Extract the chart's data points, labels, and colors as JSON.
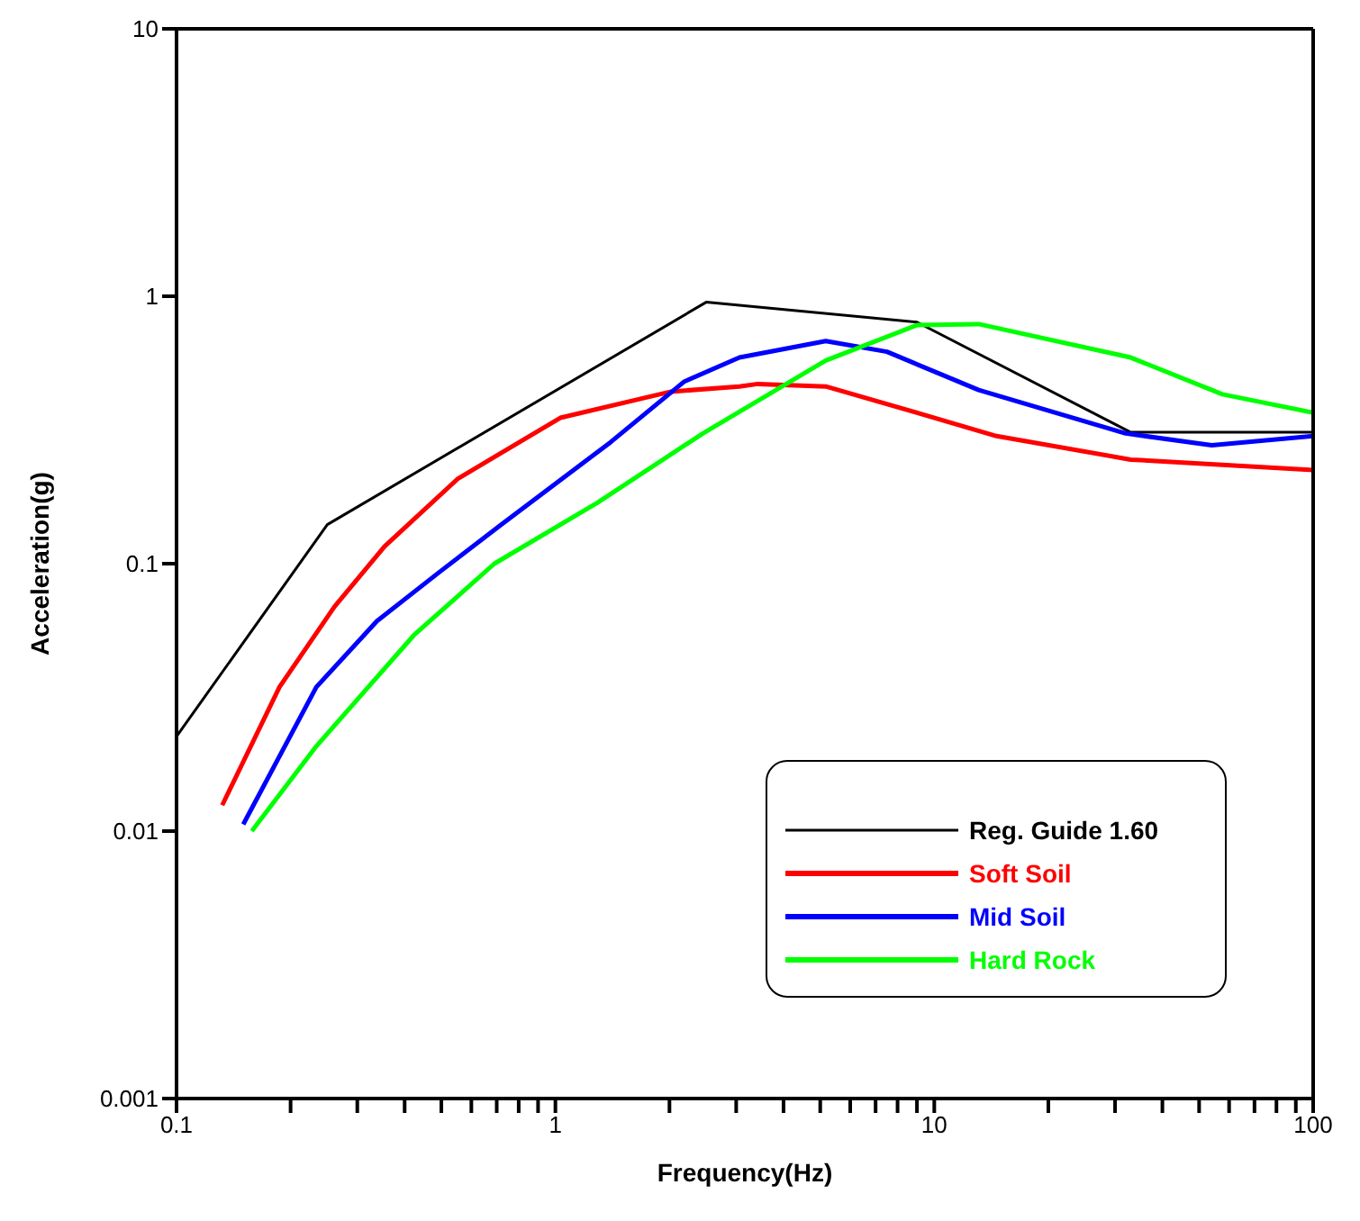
{
  "chart_data": {
    "type": "line",
    "xlabel": "Frequency(Hz)",
    "ylabel": "Acceleration(g)",
    "log": "xy",
    "grid": false,
    "legend": "bottom right",
    "marker": "none",
    "line_style": "solid",
    "xlim": [
      0.1,
      100
    ],
    "ylim": [
      0.001,
      10
    ],
    "xticks": [
      0.1,
      {
        "value": 0.2,
        "label": null
      },
      {
        "value": 0.3,
        "label": null
      },
      {
        "value": 0.4,
        "label": null
      },
      {
        "value": 0.5,
        "label": null
      },
      {
        "value": 0.6,
        "label": null
      },
      {
        "value": 0.7,
        "label": null
      },
      {
        "value": 0.8,
        "label": null
      },
      {
        "value": 0.9,
        "label": null
      },
      1,
      {
        "value": 2,
        "label": null
      },
      {
        "value": 3,
        "label": null
      },
      {
        "value": 4,
        "label": null
      },
      {
        "value": 5,
        "label": null
      },
      {
        "value": 6,
        "label": null
      },
      {
        "value": 7,
        "label": null
      },
      {
        "value": 8,
        "label": null
      },
      {
        "value": 9,
        "label": null
      },
      10,
      {
        "value": 20,
        "label": null
      },
      {
        "value": 30,
        "label": null
      },
      {
        "value": 40,
        "label": null
      },
      {
        "value": 50,
        "label": null
      },
      {
        "value": 60,
        "label": null
      },
      {
        "value": 70,
        "label": null
      },
      {
        "value": 80,
        "label": null
      },
      {
        "value": 90,
        "label": null
      },
      100
    ],
    "yticks": [
      0.001,
      0.01,
      0.1,
      1,
      10
    ],
    "series": [
      {
        "name": "Reg. Guide 1.60",
        "color": "#000000",
        "x": [
          0.1,
          0.25,
          2.5,
          9,
          33,
          100
        ],
        "values": [
          0.0226,
          0.14,
          0.95,
          0.8,
          0.31,
          0.31
        ]
      },
      {
        "name": "Soft Soil",
        "color": "#ff0000",
        "x": [
          0.132,
          0.187,
          0.261,
          0.354,
          0.553,
          1.03,
          2.02,
          3.06,
          3.42,
          5.17,
          9,
          14.6,
          33,
          100
        ],
        "values": [
          0.0125,
          0.0346,
          0.069,
          0.116,
          0.208,
          0.351,
          0.44,
          0.46,
          0.47,
          0.46,
          0.367,
          0.3,
          0.245,
          0.224
        ]
      },
      {
        "name": "Mid Soil",
        "color": "#0000ff",
        "x": [
          0.15,
          0.234,
          0.338,
          0.494,
          0.715,
          1.4,
          2.19,
          3.06,
          5.17,
          7.5,
          13.1,
          32,
          54,
          100
        ],
        "values": [
          0.0106,
          0.0346,
          0.061,
          0.093,
          0.139,
          0.285,
          0.48,
          0.59,
          0.68,
          0.62,
          0.446,
          0.307,
          0.277,
          0.3
        ]
      },
      {
        "name": "Hard Rock",
        "color": "#00ff00",
        "x": [
          0.158,
          0.234,
          0.423,
          0.69,
          1.29,
          2.45,
          5.17,
          9,
          13.1,
          33,
          57.6,
          100
        ],
        "values": [
          0.01,
          0.0208,
          0.054,
          0.1,
          0.169,
          0.307,
          0.575,
          0.78,
          0.787,
          0.59,
          0.43,
          0.367
        ]
      }
    ]
  }
}
